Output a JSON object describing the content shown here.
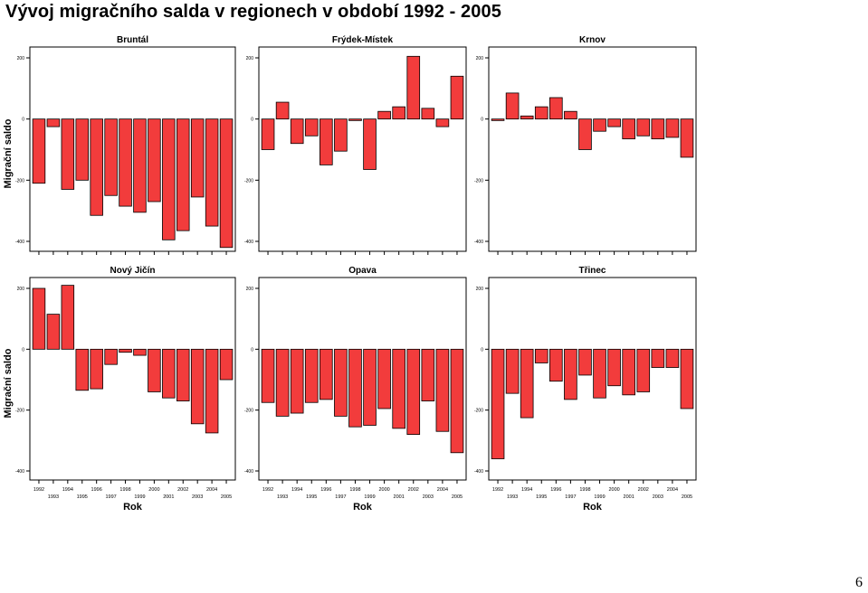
{
  "title": "Vývoj migračního salda v regionech v období 1992 - 2005",
  "page_number": "6",
  "colors": {
    "bar_fill": "#f23c3c",
    "bar_stroke": "#000000"
  },
  "chart_data": [
    {
      "type": "bar",
      "title": "Bruntál",
      "ylabel": "Migrační saldo",
      "xlabel": "",
      "ylim": [
        -410,
        200
      ],
      "yticks": [
        200,
        0,
        -200,
        -400
      ],
      "categories": [
        "1992",
        "1993",
        "1994",
        "1995",
        "1996",
        "1997",
        "1998",
        "1999",
        "2000",
        "2001",
        "2002",
        "2003",
        "2004",
        "2005"
      ],
      "values": [
        -210,
        -25,
        -230,
        -200,
        -315,
        -250,
        -285,
        -305,
        -270,
        -395,
        -365,
        -255,
        -350,
        -420
      ],
      "grid": false
    },
    {
      "type": "bar",
      "title": "Frýdek-Místek",
      "ylabel": "",
      "xlabel": "",
      "ylim": [
        -410,
        200
      ],
      "yticks": [
        200,
        0,
        -200,
        -400
      ],
      "categories": [
        "1992",
        "1993",
        "1994",
        "1995",
        "1996",
        "1997",
        "1998",
        "1999",
        "2000",
        "2001",
        "2002",
        "2003",
        "2004",
        "2005"
      ],
      "values": [
        -100,
        55,
        -80,
        -55,
        -150,
        -105,
        -5,
        -165,
        25,
        40,
        205,
        35,
        -25,
        140
      ],
      "grid": false
    },
    {
      "type": "bar",
      "title": "Krnov",
      "ylabel": "",
      "xlabel": "",
      "ylim": [
        -410,
        200
      ],
      "yticks": [
        200,
        0,
        -200,
        -400
      ],
      "categories": [
        "1992",
        "1993",
        "1994",
        "1995",
        "1996",
        "1997",
        "1998",
        "1999",
        "2000",
        "2001",
        "2002",
        "2003",
        "2004",
        "2005"
      ],
      "values": [
        -5,
        85,
        10,
        40,
        70,
        25,
        -100,
        -40,
        -25,
        -65,
        -55,
        -65,
        -60,
        -125
      ],
      "grid": false
    },
    {
      "type": "bar",
      "title": "Nový Jičín",
      "ylabel": "Migrační saldo",
      "xlabel": "Rok",
      "ylim": [
        -410,
        200
      ],
      "yticks": [
        200,
        0,
        -200,
        -400
      ],
      "categories": [
        "1992",
        "1993",
        "1994",
        "1995",
        "1996",
        "1997",
        "1998",
        "1999",
        "2000",
        "2001",
        "2002",
        "2003",
        "2004",
        "2005"
      ],
      "values": [
        200,
        115,
        210,
        -135,
        -130,
        -50,
        -10,
        -20,
        -140,
        -160,
        -170,
        -245,
        -275,
        -100
      ],
      "grid": false
    },
    {
      "type": "bar",
      "title": "Opava",
      "ylabel": "",
      "xlabel": "Rok",
      "ylim": [
        -410,
        200
      ],
      "yticks": [
        200,
        0,
        -200,
        -400
      ],
      "categories": [
        "1992",
        "1993",
        "1994",
        "1995",
        "1996",
        "1997",
        "1998",
        "1999",
        "2000",
        "2001",
        "2002",
        "2003",
        "2004",
        "2005"
      ],
      "values": [
        -175,
        -220,
        -210,
        -175,
        -165,
        -220,
        -255,
        -250,
        -195,
        -260,
        -280,
        -170,
        -270,
        -340
      ],
      "grid": false
    },
    {
      "type": "bar",
      "title": "Třinec",
      "ylabel": "",
      "xlabel": "Rok",
      "ylim": [
        -410,
        200
      ],
      "yticks": [
        200,
        0,
        -200,
        -400
      ],
      "categories": [
        "1992",
        "1993",
        "1994",
        "1995",
        "1996",
        "1997",
        "1998",
        "1999",
        "2000",
        "2001",
        "2002",
        "2003",
        "2004",
        "2005"
      ],
      "values": [
        -360,
        -145,
        -225,
        -45,
        -105,
        -165,
        -85,
        -160,
        -120,
        -150,
        -140,
        -60,
        -60,
        -195
      ],
      "grid": false
    }
  ]
}
